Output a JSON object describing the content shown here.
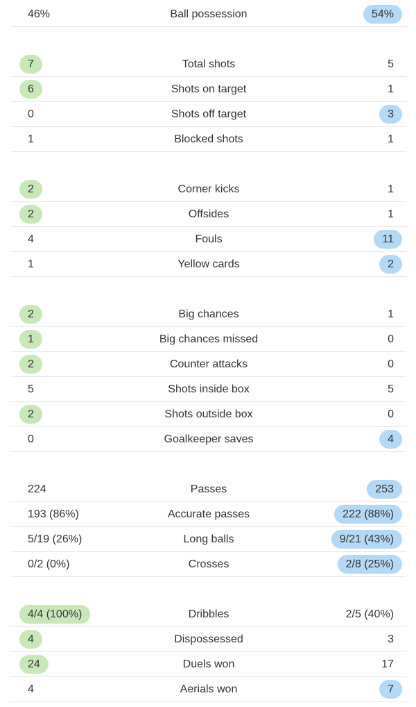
{
  "colors": {
    "home_highlight": "#c8e8b8",
    "away_highlight": "#b3d9f7",
    "text": "#333333",
    "divider": "#e3e3e3"
  },
  "groups": [
    {
      "rows": [
        {
          "label": "Ball possession",
          "home": "46%",
          "away": "54%",
          "highlight": "away"
        }
      ]
    },
    {
      "rows": [
        {
          "label": "Total shots",
          "home": "7",
          "away": "5",
          "highlight": "home"
        },
        {
          "label": "Shots on target",
          "home": "6",
          "away": "1",
          "highlight": "home"
        },
        {
          "label": "Shots off target",
          "home": "0",
          "away": "3",
          "highlight": "away"
        },
        {
          "label": "Blocked shots",
          "home": "1",
          "away": "1",
          "highlight": "none"
        }
      ]
    },
    {
      "rows": [
        {
          "label": "Corner kicks",
          "home": "2",
          "away": "1",
          "highlight": "home"
        },
        {
          "label": "Offsides",
          "home": "2",
          "away": "1",
          "highlight": "home"
        },
        {
          "label": "Fouls",
          "home": "4",
          "away": "11",
          "highlight": "away"
        },
        {
          "label": "Yellow cards",
          "home": "1",
          "away": "2",
          "highlight": "away"
        }
      ]
    },
    {
      "rows": [
        {
          "label": "Big chances",
          "home": "2",
          "away": "1",
          "highlight": "home"
        },
        {
          "label": "Big chances missed",
          "home": "1",
          "away": "0",
          "highlight": "home"
        },
        {
          "label": "Counter attacks",
          "home": "2",
          "away": "0",
          "highlight": "home"
        },
        {
          "label": "Shots inside box",
          "home": "5",
          "away": "5",
          "highlight": "none"
        },
        {
          "label": "Shots outside box",
          "home": "2",
          "away": "0",
          "highlight": "home"
        },
        {
          "label": "Goalkeeper saves",
          "home": "0",
          "away": "4",
          "highlight": "away"
        }
      ]
    },
    {
      "rows": [
        {
          "label": "Passes",
          "home": "224",
          "away": "253",
          "highlight": "away"
        },
        {
          "label": "Accurate passes",
          "home": "193 (86%)",
          "away": "222 (88%)",
          "highlight": "away"
        },
        {
          "label": "Long balls",
          "home": "5/19 (26%)",
          "away": "9/21 (43%)",
          "highlight": "away"
        },
        {
          "label": "Crosses",
          "home": "0/2 (0%)",
          "away": "2/8 (25%)",
          "highlight": "away"
        }
      ]
    },
    {
      "rows": [
        {
          "label": "Dribbles",
          "home": "4/4 (100%)",
          "away": "2/5 (40%)",
          "highlight": "home"
        },
        {
          "label": "Dispossessed",
          "home": "4",
          "away": "3",
          "highlight": "home"
        },
        {
          "label": "Duels won",
          "home": "24",
          "away": "17",
          "highlight": "home"
        },
        {
          "label": "Aerials won",
          "home": "4",
          "away": "7",
          "highlight": "away"
        }
      ]
    }
  ]
}
